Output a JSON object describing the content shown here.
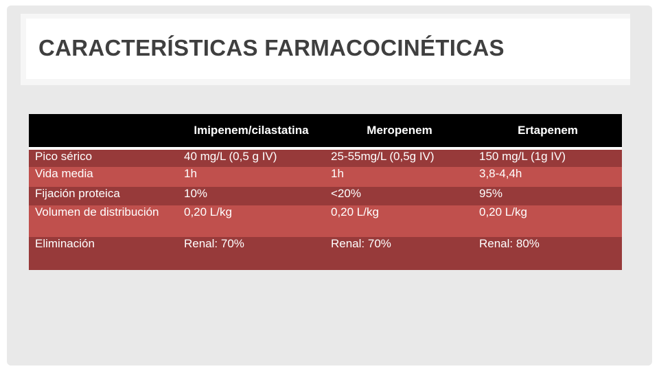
{
  "slide": {
    "title": "CARACTERÍSTICAS FARMACOCINÉTICAS"
  },
  "table": {
    "headers": [
      "",
      "Imipenem/cilastatina",
      "Meropenem",
      "Ertapenem"
    ],
    "rows": [
      {
        "label": "Pico sérico",
        "values": [
          "40 mg/L (0,5 g IV)",
          "25-55mg/L (0,5g IV)",
          "150 mg/L (1g IV)"
        ]
      },
      {
        "label": "Vida media",
        "values": [
          "1h",
          "1h",
          "3,8-4,4h"
        ]
      },
      {
        "label": "Fijación proteica",
        "values": [
          "10%",
          "<20%",
          "95%"
        ]
      },
      {
        "label": "Volumen de distribución",
        "values": [
          "0,20 L/kg",
          "0,20 L/kg",
          "0,20 L/kg"
        ]
      },
      {
        "label": "Eliminación",
        "values": [
          "Renal: 70%",
          "Renal: 70%",
          "Renal: 80%"
        ]
      }
    ]
  },
  "colors": {
    "header_bg": "#000000",
    "row_dark": "#973a3a",
    "row_light": "#c0504d",
    "title_text": "#3f3f3f"
  }
}
